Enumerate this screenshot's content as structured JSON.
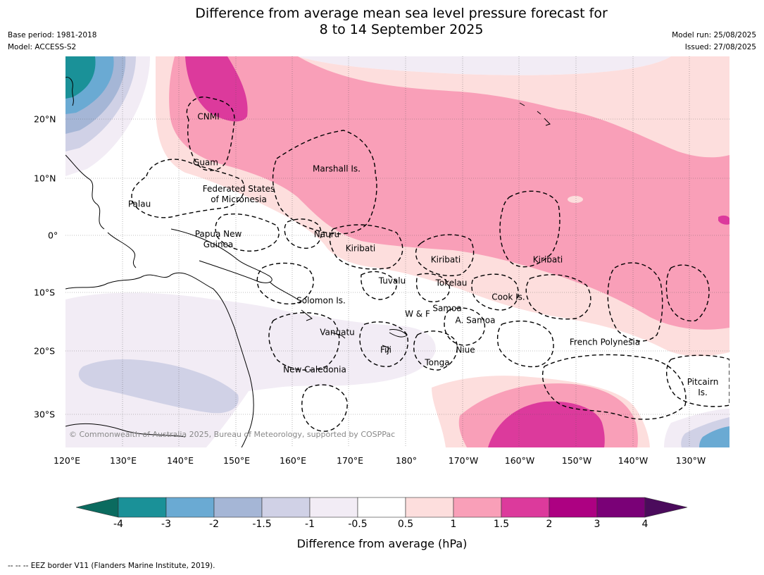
{
  "title_line1": "Difference from average mean sea level pressure forecast for",
  "title_line2": "8 to 14 September 2025",
  "base_period": "Base period: 1981-2018",
  "model": "Model: ACCESS-S2",
  "model_run": "Model run: 25/08/2025",
  "issued": "Issued: 27/08/2025",
  "copyright": "© Commonwealth of Australia 2025, Bureau of Meteorology, supported by COSPPac",
  "lon_labels": [
    "120°E",
    "130°E",
    "140°E",
    "150°E",
    "160°E",
    "170°E",
    "180°",
    "170°W",
    "160°W",
    "150°W",
    "140°W",
    "130°W"
  ],
  "lat_labels": [
    "20°N",
    "10°N",
    "0°",
    "10°S",
    "20°S",
    "30°S"
  ],
  "regions": {
    "cnmi": "CNMI",
    "guam": "Guam",
    "marshall": "Marshall Is.",
    "fsm1": "Federated States",
    "fsm2": "of Micronesia",
    "palau": "Palau",
    "png1": "Papua New",
    "png2": "Guinea",
    "nauru": "Nauru",
    "kiribati_w": "Kiribati",
    "kiribati_c": "Kiribati",
    "kiribati_e": "Kiribati",
    "tuvalu": "Tuvalu",
    "tokelau": "Tokelau",
    "solomon": "Solomon Is.",
    "wf": "W & F",
    "samoa": "Samoa",
    "asamoa": "A. Samoa",
    "cook": "Cook Is.",
    "vanuatu": "Vanuatu",
    "fiji": "Fiji",
    "niue": "Niue",
    "tonga": "Tonga",
    "fp": "French Polynesia",
    "newcal": "New Caledonia",
    "pitcairn1": "Pitcairn",
    "pitcairn2": "Is."
  },
  "colorbar": {
    "label": "Difference from average (hPa)",
    "ticks": [
      "-4",
      "-3",
      "-2",
      "-1.5",
      "-1",
      "-0.5",
      "0.5",
      "1",
      "1.5",
      "2",
      "3",
      "4"
    ],
    "under_color": "#0b6b5f",
    "over_color": "#4b0b5c",
    "colors": [
      "#1a9198",
      "#6aaad3",
      "#a5b6d6",
      "#d0d1e6",
      "#f2ecf5",
      "#ffffff",
      "#fddedd",
      "#f99fb8",
      "#dc3a9c",
      "#ad0182",
      "#7a0177"
    ]
  },
  "footer": "--  --  -- EEZ border V11 (Flanders Marine Institute, 2019)."
}
